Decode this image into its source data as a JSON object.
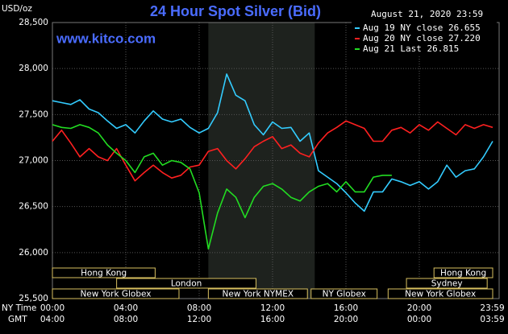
{
  "chart_data": {
    "type": "line",
    "title": "24 Hour Spot Silver (Bid)",
    "unit_label": "USD/oz",
    "timestamp": "August 21, 2020 23:59",
    "watermark": "www.kitco.com",
    "ny_time_label": "NY Time",
    "gmt_label": "GMT",
    "ylim": [
      25500,
      28500
    ],
    "yticks": [
      {
        "value": 25500,
        "label": "25,500"
      },
      {
        "value": 26000,
        "label": "26,000"
      },
      {
        "value": 26500,
        "label": "26,500"
      },
      {
        "value": 27000,
        "label": "27,000"
      },
      {
        "value": 27500,
        "label": "27,500"
      },
      {
        "value": 28000,
        "label": "28,000"
      },
      {
        "value": 28500,
        "label": "28,500"
      }
    ],
    "xlim": [
      0,
      24
    ],
    "xticks": [
      {
        "value": 0,
        "label": "00:00"
      },
      {
        "value": 4,
        "label": "04:00"
      },
      {
        "value": 8,
        "label": "08:00"
      },
      {
        "value": 12,
        "label": "12:00"
      },
      {
        "value": 16,
        "label": "16:00"
      },
      {
        "value": 20,
        "label": "20:00"
      },
      {
        "value": 23.98,
        "label": "23:59"
      }
    ],
    "gmt_labels": [
      "04:00",
      "08:00",
      "12:00",
      "16:00",
      "20:00",
      "00:00",
      "03:59"
    ],
    "grid": true,
    "highlight": [
      8.5,
      14.3
    ],
    "sessions": [
      {
        "label": "Hong Kong",
        "start": 0,
        "end": 5.6
      },
      {
        "label": "Hong Kong",
        "start": 20.8,
        "end": 24
      },
      {
        "label": "London",
        "start": 3.5,
        "end": 11.1
      },
      {
        "label": "Sydney",
        "start": 19.3,
        "end": 23.7
      },
      {
        "label": "New York Globex",
        "start": 0,
        "end": 6.9
      },
      {
        "label": "New York NYMEX",
        "start": 8.5,
        "end": 13.9
      },
      {
        "label": "NY Globex",
        "start": 14.1,
        "end": 17.7
      },
      {
        "label": "New York Globex",
        "start": 18.3,
        "end": 24
      }
    ],
    "series": [
      {
        "name": "Aug 19 NY close 26.655",
        "color": "#33ccff",
        "x": [
          0,
          0.5,
          1,
          1.5,
          2,
          2.5,
          3,
          3.5,
          4,
          4.5,
          5,
          5.5,
          6,
          6.5,
          7,
          7.5,
          8,
          8.5,
          9,
          9.5,
          10,
          10.5,
          11,
          11.5,
          12,
          12.5,
          13,
          13.5,
          14,
          14.5,
          15,
          15.5,
          16,
          16.5,
          17,
          17.5,
          18,
          18.5,
          19,
          19.5,
          20,
          20.5,
          21,
          21.5,
          22,
          22.5,
          23,
          23.5,
          24
        ],
        "values": [
          27650,
          27630,
          27610,
          27660,
          27560,
          27520,
          27430,
          27350,
          27390,
          27300,
          27430,
          27540,
          27450,
          27420,
          27450,
          27360,
          27300,
          27350,
          27520,
          27940,
          27710,
          27650,
          27390,
          27280,
          27420,
          27350,
          27360,
          27210,
          27300,
          26890,
          26820,
          26750,
          26650,
          26540,
          26450,
          26660,
          26660,
          26800,
          26770,
          26730,
          26770,
          26690,
          26770,
          26950,
          26820,
          26890,
          26910,
          27040,
          27210
        ]
      },
      {
        "name": "Aug 20 NY close 27.220",
        "color": "#ff2020",
        "x": [
          0,
          0.5,
          1,
          1.5,
          2,
          2.5,
          3,
          3.5,
          4,
          4.5,
          5,
          5.5,
          6,
          6.5,
          7,
          7.5,
          8,
          8.5,
          9,
          9.5,
          10,
          10.5,
          11,
          11.5,
          12,
          12.5,
          13,
          13.5,
          14,
          14.5,
          15,
          15.5,
          16,
          16.5,
          17,
          17.5,
          18,
          18.5,
          19,
          19.5,
          20,
          20.5,
          21,
          21.5,
          22,
          22.5,
          23,
          23.5,
          24
        ],
        "values": [
          27210,
          27330,
          27190,
          27040,
          27130,
          27040,
          27000,
          27130,
          26950,
          26780,
          26870,
          26950,
          26870,
          26810,
          26840,
          26930,
          26950,
          27100,
          27130,
          27000,
          26910,
          27020,
          27150,
          27210,
          27260,
          27130,
          27170,
          27080,
          27040,
          27190,
          27300,
          27360,
          27430,
          27390,
          27350,
          27210,
          27210,
          27330,
          27360,
          27300,
          27390,
          27330,
          27420,
          27350,
          27280,
          27390,
          27350,
          27390,
          27360
        ]
      },
      {
        "name": "Aug 21 Last 26.815",
        "color": "#22dd22",
        "x": [
          0,
          0.5,
          1,
          1.5,
          2,
          2.5,
          3,
          3.5,
          4,
          4.5,
          5,
          5.5,
          6,
          6.5,
          7,
          7.5,
          8,
          8.5,
          9,
          9.5,
          10,
          10.5,
          11,
          11.5,
          12,
          12.5,
          13,
          13.5,
          14,
          14.5,
          15,
          15.5,
          16,
          16.5,
          17,
          17.5,
          18,
          18.5
        ],
        "values": [
          27390,
          27360,
          27350,
          27390,
          27360,
          27300,
          27170,
          27080,
          27000,
          26870,
          27040,
          27080,
          26950,
          27000,
          26980,
          26910,
          26650,
          26040,
          26430,
          26690,
          26600,
          26380,
          26600,
          26720,
          26750,
          26690,
          26600,
          26560,
          26660,
          26720,
          26750,
          26660,
          26770,
          26660,
          26660,
          26820,
          26840,
          26840
        ]
      }
    ]
  }
}
